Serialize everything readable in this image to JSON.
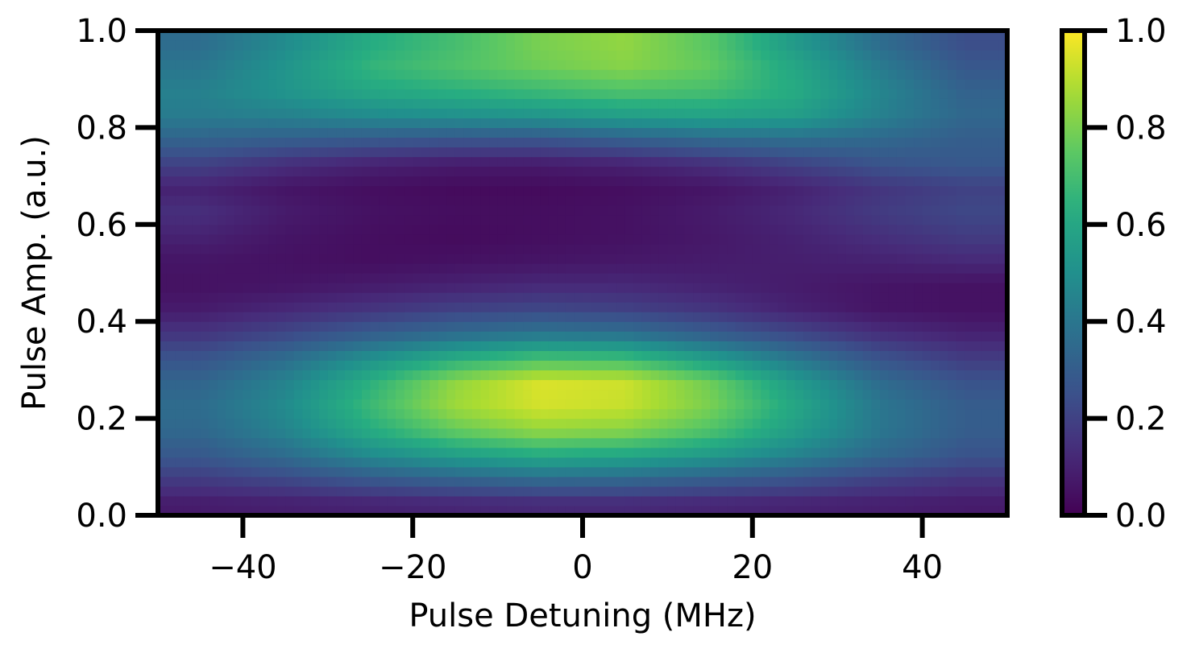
{
  "chart_data": {
    "type": "heatmap",
    "title": "",
    "xlabel": "Pulse Detuning (MHz)",
    "ylabel": "Pulse Amp. (a.u.)",
    "xlim": [
      -50,
      50
    ],
    "ylim": [
      0,
      1
    ],
    "x_ticks": [
      -40,
      -20,
      0,
      20,
      40
    ],
    "x_tick_labels": [
      "−40",
      "−20",
      "0",
      "20",
      "40"
    ],
    "y_ticks": [
      0,
      0.2,
      0.4,
      0.6,
      0.8,
      1.0
    ],
    "y_tick_labels": [
      "0.0",
      "0.2",
      "0.4",
      "0.6",
      "0.8",
      "1.0"
    ],
    "colormap": "viridis",
    "color_range": [
      0,
      1
    ],
    "colorbar_ticks": [
      0,
      0.2,
      0.4,
      0.6,
      0.8,
      1.0
    ],
    "colorbar_tick_labels": [
      "0.0",
      "0.2",
      "0.4",
      "0.6",
      "0.8",
      "1.0"
    ],
    "grid": false,
    "x": [
      -45,
      -35,
      -25,
      -15,
      -5,
      5,
      15,
      25,
      35,
      45
    ],
    "y": [
      0.025,
      0.075,
      0.125,
      0.175,
      0.225,
      0.275,
      0.325,
      0.375,
      0.425,
      0.475,
      0.525,
      0.575,
      0.625,
      0.675,
      0.725,
      0.775,
      0.825,
      0.875,
      0.925,
      0.975
    ],
    "z": [
      [
        0.08,
        0.09,
        0.1,
        0.11,
        0.12,
        0.12,
        0.11,
        0.1,
        0.09,
        0.08
      ],
      [
        0.18,
        0.22,
        0.28,
        0.32,
        0.35,
        0.34,
        0.3,
        0.26,
        0.2,
        0.16
      ],
      [
        0.28,
        0.36,
        0.48,
        0.56,
        0.62,
        0.6,
        0.54,
        0.45,
        0.34,
        0.26
      ],
      [
        0.34,
        0.45,
        0.62,
        0.76,
        0.84,
        0.82,
        0.72,
        0.56,
        0.4,
        0.3
      ],
      [
        0.36,
        0.48,
        0.68,
        0.86,
        0.94,
        0.92,
        0.8,
        0.6,
        0.4,
        0.3
      ],
      [
        0.33,
        0.45,
        0.64,
        0.84,
        0.95,
        0.93,
        0.78,
        0.55,
        0.36,
        0.26
      ],
      [
        0.26,
        0.36,
        0.5,
        0.62,
        0.7,
        0.68,
        0.55,
        0.4,
        0.26,
        0.18
      ],
      [
        0.16,
        0.22,
        0.3,
        0.36,
        0.4,
        0.38,
        0.3,
        0.22,
        0.14,
        0.1
      ],
      [
        0.08,
        0.12,
        0.16,
        0.2,
        0.22,
        0.2,
        0.16,
        0.1,
        0.06,
        0.05
      ],
      [
        0.05,
        0.06,
        0.08,
        0.1,
        0.12,
        0.12,
        0.1,
        0.08,
        0.06,
        0.05
      ],
      [
        0.06,
        0.05,
        0.04,
        0.05,
        0.06,
        0.07,
        0.08,
        0.09,
        0.1,
        0.12
      ],
      [
        0.1,
        0.06,
        0.04,
        0.03,
        0.04,
        0.05,
        0.07,
        0.1,
        0.14,
        0.18
      ],
      [
        0.14,
        0.08,
        0.05,
        0.04,
        0.04,
        0.05,
        0.08,
        0.12,
        0.18,
        0.22
      ],
      [
        0.1,
        0.06,
        0.04,
        0.03,
        0.03,
        0.04,
        0.06,
        0.1,
        0.16,
        0.2
      ],
      [
        0.2,
        0.14,
        0.1,
        0.08,
        0.08,
        0.1,
        0.14,
        0.2,
        0.26,
        0.28
      ],
      [
        0.32,
        0.3,
        0.28,
        0.26,
        0.26,
        0.3,
        0.34,
        0.36,
        0.34,
        0.3
      ],
      [
        0.42,
        0.44,
        0.48,
        0.5,
        0.52,
        0.56,
        0.58,
        0.56,
        0.44,
        0.34
      ],
      [
        0.44,
        0.52,
        0.6,
        0.64,
        0.68,
        0.72,
        0.7,
        0.62,
        0.46,
        0.32
      ],
      [
        0.4,
        0.52,
        0.66,
        0.72,
        0.78,
        0.82,
        0.76,
        0.6,
        0.42,
        0.28
      ],
      [
        0.36,
        0.48,
        0.62,
        0.7,
        0.8,
        0.84,
        0.74,
        0.54,
        0.36,
        0.24
      ]
    ]
  }
}
